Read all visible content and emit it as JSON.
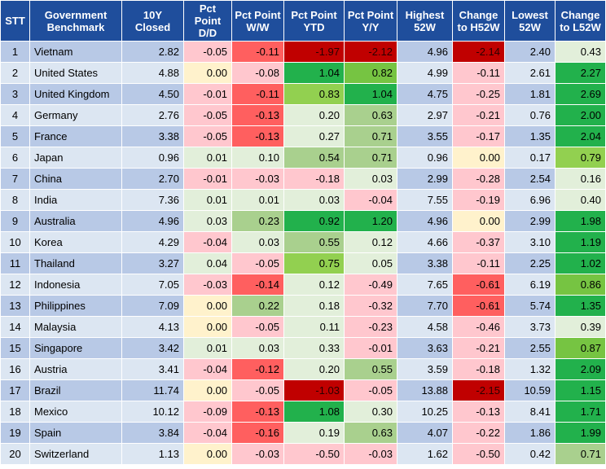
{
  "chart_data": {
    "type": "table",
    "columns": [
      "STT",
      "Government Benchmark",
      "10Y Closed",
      "Pct Point D/D",
      "Pct Point W/W",
      "Pct Point YTD",
      "Pct Point Y/Y",
      "Highest 52W",
      "Change to H52W",
      "Lowest 52W",
      "Change to L52W"
    ],
    "rows": [
      [
        "1",
        "Vietnam",
        "2.82",
        "-0.05",
        "-0.11",
        "-1.97",
        "-2.12",
        "4.96",
        "-2.14",
        "2.40",
        "0.43"
      ],
      [
        "2",
        "United States",
        "4.88",
        "0.00",
        "-0.08",
        "1.04",
        "0.82",
        "4.99",
        "-0.11",
        "2.61",
        "2.27"
      ],
      [
        "3",
        "United Kingdom",
        "4.50",
        "-0.01",
        "-0.11",
        "0.83",
        "1.04",
        "4.75",
        "-0.25",
        "1.81",
        "2.69"
      ],
      [
        "4",
        "Germany",
        "2.76",
        "-0.05",
        "-0.13",
        "0.20",
        "0.63",
        "2.97",
        "-0.21",
        "0.76",
        "2.00"
      ],
      [
        "5",
        "France",
        "3.38",
        "-0.05",
        "-0.13",
        "0.27",
        "0.71",
        "3.55",
        "-0.17",
        "1.35",
        "2.04"
      ],
      [
        "6",
        "Japan",
        "0.96",
        "0.01",
        "0.10",
        "0.54",
        "0.71",
        "0.96",
        "0.00",
        "0.17",
        "0.79"
      ],
      [
        "7",
        "China",
        "2.70",
        "-0.01",
        "-0.03",
        "-0.18",
        "0.03",
        "2.99",
        "-0.28",
        "2.54",
        "0.16"
      ],
      [
        "8",
        "India",
        "7.36",
        "0.01",
        "0.01",
        "0.03",
        "-0.04",
        "7.55",
        "-0.19",
        "6.96",
        "0.40"
      ],
      [
        "9",
        "Australia",
        "4.96",
        "0.03",
        "0.23",
        "0.92",
        "1.20",
        "4.96",
        "0.00",
        "2.99",
        "1.98"
      ],
      [
        "10",
        "Korea",
        "4.29",
        "-0.04",
        "0.03",
        "0.55",
        "0.12",
        "4.66",
        "-0.37",
        "3.10",
        "1.19"
      ],
      [
        "11",
        "Thailand",
        "3.27",
        "0.04",
        "-0.05",
        "0.75",
        "0.05",
        "3.38",
        "-0.11",
        "2.25",
        "1.02"
      ],
      [
        "12",
        "Indonesia",
        "7.05",
        "-0.03",
        "-0.14",
        "0.12",
        "-0.49",
        "7.65",
        "-0.61",
        "6.19",
        "0.86"
      ],
      [
        "13",
        "Philippines",
        "7.09",
        "0.00",
        "0.22",
        "0.18",
        "-0.32",
        "7.70",
        "-0.61",
        "5.74",
        "1.35"
      ],
      [
        "14",
        "Malaysia",
        "4.13",
        "0.00",
        "-0.05",
        "0.11",
        "-0.23",
        "4.58",
        "-0.46",
        "3.73",
        "0.39"
      ],
      [
        "15",
        "Singapore",
        "3.42",
        "0.01",
        "0.03",
        "0.33",
        "-0.01",
        "3.63",
        "-0.21",
        "2.55",
        "0.87"
      ],
      [
        "16",
        "Austria",
        "3.41",
        "-0.04",
        "-0.12",
        "0.20",
        "0.55",
        "3.59",
        "-0.18",
        "1.32",
        "2.09"
      ],
      [
        "17",
        "Brazil",
        "11.74",
        "0.00",
        "-0.05",
        "-1.03",
        "-0.05",
        "13.88",
        "-2.15",
        "10.59",
        "1.15"
      ],
      [
        "18",
        "Mexico",
        "10.12",
        "-0.09",
        "-0.13",
        "1.08",
        "0.30",
        "10.25",
        "-0.13",
        "8.41",
        "1.71"
      ],
      [
        "19",
        "Spain",
        "3.84",
        "-0.04",
        "-0.16",
        "0.19",
        "0.63",
        "4.07",
        "-0.22",
        "1.86",
        "1.99"
      ],
      [
        "20",
        "Switzerland",
        "1.13",
        "0.00",
        "-0.03",
        "-0.50",
        "-0.03",
        "1.62",
        "-0.50",
        "0.42",
        "0.71"
      ]
    ],
    "cell_colors": [
      [
        "#b8c9e6",
        "#b8c9e6",
        "#b8c9e6",
        "#ffc7ce",
        "#ff5f5f",
        "#c00000",
        "#c00000",
        "#b8c9e6",
        "#c00000",
        "#b8c9e6",
        "#e2efda"
      ],
      [
        "#dce6f2",
        "#dce6f2",
        "#dce6f2",
        "#fff2cc",
        "#ffc7ce",
        "#22b14c",
        "#76c442",
        "#dce6f2",
        "#ffc7ce",
        "#dce6f2",
        "#22b14c"
      ],
      [
        "#b8c9e6",
        "#b8c9e6",
        "#b8c9e6",
        "#ffc7ce",
        "#ff5f5f",
        "#92d050",
        "#22b14c",
        "#b8c9e6",
        "#ffc7ce",
        "#b8c9e6",
        "#22b14c"
      ],
      [
        "#dce6f2",
        "#dce6f2",
        "#dce6f2",
        "#ffc7ce",
        "#ff5f5f",
        "#e2efda",
        "#a9d08e",
        "#dce6f2",
        "#ffc7ce",
        "#dce6f2",
        "#22b14c"
      ],
      [
        "#b8c9e6",
        "#b8c9e6",
        "#b8c9e6",
        "#ffc7ce",
        "#ff5f5f",
        "#e2efda",
        "#a9d08e",
        "#b8c9e6",
        "#ffc7ce",
        "#b8c9e6",
        "#22b14c"
      ],
      [
        "#dce6f2",
        "#dce6f2",
        "#dce6f2",
        "#e2efda",
        "#e2efda",
        "#a9d08e",
        "#a9d08e",
        "#dce6f2",
        "#fff2cc",
        "#dce6f2",
        "#92d050"
      ],
      [
        "#b8c9e6",
        "#b8c9e6",
        "#b8c9e6",
        "#ffc7ce",
        "#ffc7ce",
        "#ffc7ce",
        "#e2efda",
        "#b8c9e6",
        "#ffc7ce",
        "#b8c9e6",
        "#e2efda"
      ],
      [
        "#dce6f2",
        "#dce6f2",
        "#dce6f2",
        "#e2efda",
        "#e2efda",
        "#e2efda",
        "#ffc7ce",
        "#dce6f2",
        "#ffc7ce",
        "#dce6f2",
        "#e2efda"
      ],
      [
        "#b8c9e6",
        "#b8c9e6",
        "#b8c9e6",
        "#e2efda",
        "#a9d08e",
        "#22b14c",
        "#22b14c",
        "#b8c9e6",
        "#fff2cc",
        "#b8c9e6",
        "#22b14c"
      ],
      [
        "#dce6f2",
        "#dce6f2",
        "#dce6f2",
        "#ffc7ce",
        "#e2efda",
        "#a9d08e",
        "#e2efda",
        "#dce6f2",
        "#ffc7ce",
        "#dce6f2",
        "#22b14c"
      ],
      [
        "#b8c9e6",
        "#b8c9e6",
        "#b8c9e6",
        "#e2efda",
        "#ffc7ce",
        "#92d050",
        "#e2efda",
        "#b8c9e6",
        "#ffc7ce",
        "#b8c9e6",
        "#22b14c"
      ],
      [
        "#dce6f2",
        "#dce6f2",
        "#dce6f2",
        "#ffc7ce",
        "#ff5f5f",
        "#e2efda",
        "#ffc7ce",
        "#dce6f2",
        "#ff5f5f",
        "#dce6f2",
        "#76c442"
      ],
      [
        "#b8c9e6",
        "#b8c9e6",
        "#b8c9e6",
        "#fff2cc",
        "#a9d08e",
        "#e2efda",
        "#ffc7ce",
        "#b8c9e6",
        "#ff5f5f",
        "#b8c9e6",
        "#22b14c"
      ],
      [
        "#dce6f2",
        "#dce6f2",
        "#dce6f2",
        "#fff2cc",
        "#ffc7ce",
        "#e2efda",
        "#ffc7ce",
        "#dce6f2",
        "#ffc7ce",
        "#dce6f2",
        "#e2efda"
      ],
      [
        "#b8c9e6",
        "#b8c9e6",
        "#b8c9e6",
        "#e2efda",
        "#e2efda",
        "#e2efda",
        "#ffc7ce",
        "#b8c9e6",
        "#ffc7ce",
        "#b8c9e6",
        "#76c442"
      ],
      [
        "#dce6f2",
        "#dce6f2",
        "#dce6f2",
        "#ffc7ce",
        "#ff5f5f",
        "#e2efda",
        "#a9d08e",
        "#dce6f2",
        "#ffc7ce",
        "#dce6f2",
        "#22b14c"
      ],
      [
        "#b8c9e6",
        "#b8c9e6",
        "#b8c9e6",
        "#fff2cc",
        "#ffc7ce",
        "#c00000",
        "#ffc7ce",
        "#b8c9e6",
        "#c00000",
        "#b8c9e6",
        "#22b14c"
      ],
      [
        "#dce6f2",
        "#dce6f2",
        "#dce6f2",
        "#ffc7ce",
        "#ff5f5f",
        "#22b14c",
        "#e2efda",
        "#dce6f2",
        "#ffc7ce",
        "#dce6f2",
        "#22b14c"
      ],
      [
        "#b8c9e6",
        "#b8c9e6",
        "#b8c9e6",
        "#ffc7ce",
        "#ff5f5f",
        "#e2efda",
        "#a9d08e",
        "#b8c9e6",
        "#ffc7ce",
        "#b8c9e6",
        "#22b14c"
      ],
      [
        "#dce6f2",
        "#dce6f2",
        "#dce6f2",
        "#fff2cc",
        "#ffc7ce",
        "#ffc7ce",
        "#ffc7ce",
        "#dce6f2",
        "#ffc7ce",
        "#dce6f2",
        "#a9d08e"
      ]
    ],
    "header_color": "#1f4e9c",
    "row_colors": [
      "#b8c9e6",
      "#dce6f2"
    ]
  }
}
